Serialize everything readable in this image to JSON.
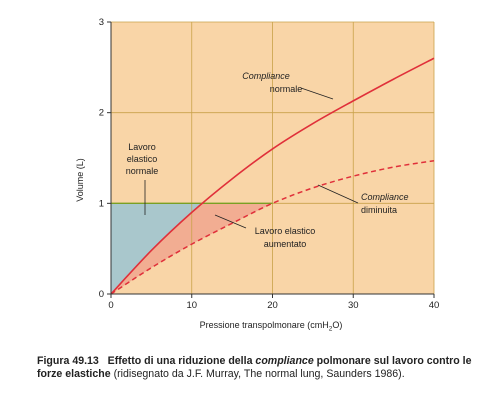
{
  "chart_data": {
    "type": "line",
    "xlabel": "Pressione transpolmonare (cmH",
    "xlabel_sub": "2",
    "xlabel_end": "O)",
    "ylabel": "Volume (L)",
    "xlim": [
      0,
      40
    ],
    "ylim": [
      0,
      3
    ],
    "xticks": [
      0,
      10,
      20,
      30,
      40
    ],
    "yticks": [
      0,
      1,
      2,
      3
    ],
    "grid": true,
    "series": [
      {
        "name": "Compliance normale",
        "style": "solid",
        "color": "#e0303a",
        "x": [
          0,
          5,
          10,
          15,
          20,
          25,
          30,
          35,
          40
        ],
        "y": [
          0,
          0.48,
          0.9,
          1.27,
          1.6,
          1.88,
          2.13,
          2.37,
          2.6
        ]
      },
      {
        "name": "Compliance diminuita",
        "style": "dashed",
        "color": "#e0303a",
        "x": [
          0,
          5,
          10,
          15,
          20,
          25,
          30,
          35,
          40
        ],
        "y": [
          0,
          0.29,
          0.55,
          0.78,
          1.0,
          1.17,
          1.3,
          1.4,
          1.47
        ]
      }
    ],
    "regions": [
      {
        "name": "Lavoro elastico normale",
        "color": "#a9c7cc"
      },
      {
        "name": "Lavoro elastico aumentato",
        "color": "#f2ad92"
      }
    ],
    "reference_line": {
      "y": 1,
      "x_end": 20,
      "color": "#7aa024"
    },
    "annotations": {
      "normale_l1": "Compliance",
      "normale_l2": "normale",
      "diminuita_l1": "Compliance",
      "diminuita_l2": "diminuita",
      "lavoro_norm_l1": "Lavoro",
      "lavoro_norm_l2": "elastico",
      "lavoro_norm_l3": "normale",
      "lavoro_aum_l1": "Lavoro elastico",
      "lavoro_aum_l2": "aumentato"
    },
    "colors": {
      "background": "#f9d5a7",
      "gridline": "#c9a24a"
    }
  },
  "caption": {
    "fig_label": "Figura 49.13",
    "title_part1": "Effetto di una riduzione della",
    "title_italic": "compliance",
    "title_part2": "polmonare sul lavoro contro le forze elastiche",
    "rest": "(ridisegnato da J.F. Murray, The normal lung, Saunders 1986)."
  }
}
